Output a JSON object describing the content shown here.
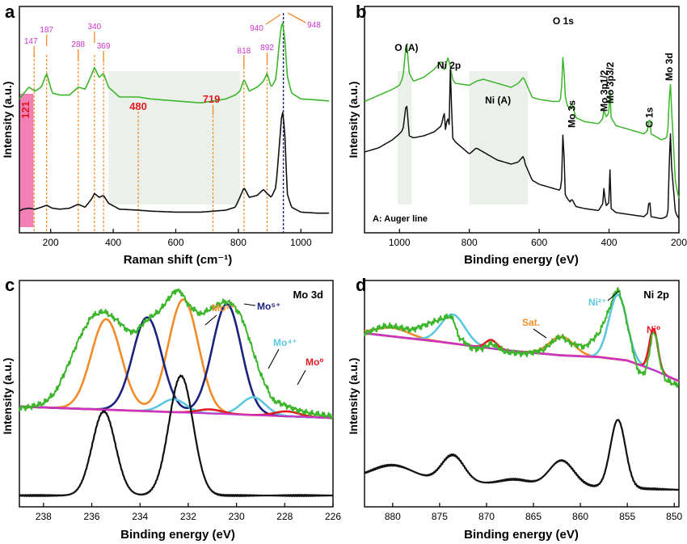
{
  "colors": {
    "green": "#3bb52a",
    "black": "#111111",
    "orange": "#f28c28",
    "navy": "#1a237e",
    "cyan": "#5bc8e0",
    "red": "#e21b23",
    "magenta": "#cc33cc",
    "pink": "#f06aa8",
    "shade": "#e6ece6"
  },
  "chart_data": [
    {
      "panel": "a",
      "type": "line",
      "xlabel": "Raman shift (cm⁻¹)",
      "ylabel": "Intensity (a.u.)",
      "xlim": [
        100,
        1100
      ],
      "xticks": [
        200,
        400,
        600,
        800,
        1000
      ],
      "shaded_regions": [
        [
          100,
          145
        ],
        [
          385,
          805
        ]
      ],
      "peak_markers": [
        {
          "x": 147,
          "label": "147"
        },
        {
          "x": 187,
          "label": "187"
        },
        {
          "x": 288,
          "label": "288"
        },
        {
          "x": 340,
          "label": "340"
        },
        {
          "x": 369,
          "label": "369"
        },
        {
          "x": 818,
          "label": "818"
        },
        {
          "x": 892,
          "label": "892"
        },
        {
          "x": 940,
          "label": "940"
        },
        {
          "x": 948,
          "label": "948"
        }
      ],
      "bold_labels": [
        {
          "x": 121,
          "label": "121"
        },
        {
          "x": 480,
          "label": "480"
        },
        {
          "x": 719,
          "label": "719"
        }
      ],
      "series": [
        {
          "name": "top",
          "color": "green",
          "x": [
            100,
            110,
            130,
            150,
            170,
            187,
            205,
            230,
            260,
            288,
            310,
            330,
            340,
            355,
            369,
            385,
            420,
            480,
            520,
            600,
            680,
            719,
            760,
            790,
            805,
            818,
            835,
            860,
            880,
            892,
            905,
            920,
            932,
            940,
            948,
            956,
            970,
            1000,
            1050,
            1090
          ],
          "y": [
            0.6,
            0.62,
            0.66,
            0.64,
            0.66,
            0.73,
            0.63,
            0.62,
            0.62,
            0.66,
            0.65,
            0.72,
            0.76,
            0.71,
            0.73,
            0.66,
            0.61,
            0.61,
            0.6,
            0.59,
            0.58,
            0.59,
            0.6,
            0.62,
            0.64,
            0.7,
            0.64,
            0.66,
            0.69,
            0.73,
            0.66,
            0.7,
            0.9,
            1.0,
            0.92,
            0.72,
            0.63,
            0.6,
            0.595,
            0.59
          ]
        },
        {
          "name": "bottom",
          "color": "black",
          "x": [
            100,
            110,
            130,
            150,
            170,
            187,
            205,
            230,
            260,
            288,
            310,
            330,
            340,
            355,
            369,
            385,
            420,
            480,
            520,
            600,
            680,
            760,
            790,
            805,
            818,
            835,
            860,
            880,
            892,
            905,
            920,
            932,
            940,
            948,
            956,
            970,
            1000,
            1050,
            1090
          ],
          "y": [
            0.03,
            0.04,
            0.045,
            0.04,
            0.05,
            0.06,
            0.045,
            0.04,
            0.045,
            0.065,
            0.05,
            0.09,
            0.12,
            0.1,
            0.11,
            0.07,
            0.04,
            0.035,
            0.03,
            0.025,
            0.025,
            0.035,
            0.05,
            0.1,
            0.15,
            0.1,
            0.11,
            0.14,
            0.12,
            0.1,
            0.15,
            0.38,
            0.55,
            0.45,
            0.12,
            0.05,
            0.025,
            0.02,
            0.02
          ]
        }
      ]
    },
    {
      "panel": "b",
      "type": "line",
      "xlabel": "Binding energy (eV)",
      "ylabel": "Intensity (a.u.)",
      "xlim": [
        1100,
        200
      ],
      "xticks": [
        1000,
        800,
        600,
        400,
        200
      ],
      "shaded_regions": [
        [
          1005,
          965
        ],
        [
          800,
          632
        ]
      ],
      "annotations": [
        {
          "x": 980,
          "label": "O (A)"
        },
        {
          "x": 858,
          "label": "Ni 2p"
        },
        {
          "x": 720,
          "label": "Ni (A)"
        },
        {
          "x": 531,
          "label": "O 1s"
        },
        {
          "x": 507,
          "label": "Mo 3s"
        },
        {
          "x": 414,
          "label": "Mo 3p1/2"
        },
        {
          "x": 397,
          "label": "Mo 3p3/2"
        },
        {
          "x": 285,
          "label": "C 1s"
        },
        {
          "x": 228,
          "label": "Mo 3d"
        }
      ],
      "legend_note": "A: Auger line",
      "series": [
        {
          "name": "top",
          "color": "green",
          "x": [
            1100,
            1060,
            1020,
            1000,
            990,
            980,
            972,
            960,
            930,
            900,
            880,
            870,
            862,
            855,
            848,
            840,
            800,
            780,
            760,
            740,
            720,
            700,
            680,
            660,
            645,
            640,
            620,
            600,
            560,
            540,
            533,
            531,
            528,
            520,
            510,
            507,
            495,
            470,
            430,
            416,
            414,
            410,
            405,
            400,
            397,
            394,
            380,
            340,
            300,
            288,
            285,
            280,
            250,
            235,
            229,
            226,
            222,
            210,
            200
          ],
          "y": [
            0.6,
            0.63,
            0.66,
            0.68,
            0.72,
            0.9,
            0.74,
            0.7,
            0.72,
            0.76,
            0.8,
            0.75,
            0.82,
            0.78,
            0.71,
            0.69,
            0.68,
            0.7,
            0.71,
            0.7,
            0.69,
            0.68,
            0.67,
            0.69,
            0.72,
            0.7,
            0.62,
            0.61,
            0.6,
            0.6,
            0.72,
            1.0,
            0.65,
            0.58,
            0.56,
            0.6,
            0.52,
            0.5,
            0.49,
            0.52,
            0.58,
            0.52,
            0.53,
            0.55,
            0.66,
            0.52,
            0.48,
            0.46,
            0.44,
            0.46,
            0.55,
            0.44,
            0.41,
            0.42,
            0.5,
            0.75,
            0.6,
            0.2,
            0.12
          ]
        },
        {
          "name": "bottom",
          "color": "black",
          "x": [
            1100,
            1060,
            1020,
            1000,
            990,
            980,
            972,
            960,
            930,
            900,
            880,
            872,
            868,
            862,
            858,
            855,
            848,
            840,
            800,
            780,
            760,
            740,
            720,
            700,
            680,
            660,
            645,
            640,
            620,
            600,
            560,
            540,
            533,
            531,
            528,
            520,
            510,
            507,
            495,
            470,
            430,
            416,
            414,
            410,
            405,
            400,
            397,
            394,
            380,
            340,
            300,
            288,
            285,
            280,
            250,
            235,
            229,
            226,
            222,
            210,
            200
          ],
          "y": [
            0.35,
            0.37,
            0.41,
            0.44,
            0.46,
            0.6,
            0.43,
            0.42,
            0.43,
            0.45,
            0.48,
            0.55,
            0.46,
            0.53,
            0.45,
            0.8,
            0.42,
            0.4,
            0.34,
            0.37,
            0.35,
            0.33,
            0.31,
            0.3,
            0.29,
            0.3,
            0.33,
            0.29,
            0.21,
            0.19,
            0.17,
            0.16,
            0.25,
            0.78,
            0.15,
            0.12,
            0.1,
            0.12,
            0.08,
            0.07,
            0.06,
            0.1,
            0.2,
            0.08,
            0.09,
            0.1,
            0.28,
            0.07,
            0.05,
            0.04,
            0.03,
            0.05,
            0.14,
            0.03,
            0.02,
            0.03,
            0.08,
            0.55,
            0.3,
            0.05,
            0.02
          ]
        }
      ]
    },
    {
      "panel": "c",
      "type": "line",
      "title": "Mo 3d",
      "xlabel": "Binding energy (eV)",
      "ylabel": "Intensity (a.u.)",
      "xlim": [
        239,
        226
      ],
      "xticks": [
        238,
        236,
        234,
        232,
        230,
        228,
        226
      ],
      "raw_curve": {
        "color": "green",
        "x": [
          239,
          238.5,
          238,
          237.5,
          237,
          236.5,
          236,
          235.5,
          235,
          234.5,
          234.2,
          233.9,
          233.5,
          233.2,
          233,
          232.7,
          232.5,
          232.3,
          232,
          231.5,
          231,
          230.5,
          230.2,
          229.8,
          229.5,
          229,
          228.5,
          228,
          227.5,
          227,
          226.5,
          226
        ],
        "y": [
          0.16,
          0.17,
          0.19,
          0.26,
          0.42,
          0.6,
          0.73,
          0.76,
          0.71,
          0.64,
          0.63,
          0.68,
          0.73,
          0.76,
          0.8,
          0.86,
          0.89,
          0.88,
          0.8,
          0.74,
          0.78,
          0.82,
          0.81,
          0.73,
          0.6,
          0.37,
          0.21,
          0.18,
          0.15,
          0.13,
          0.12,
          0.11
        ]
      },
      "baseline": {
        "color": "magenta",
        "x": [
          239,
          226
        ],
        "y": [
          0.17,
          0.1
        ]
      },
      "components": [
        {
          "label": "Mo⁶⁺",
          "color": "orange",
          "peaks": [
            {
              "center": 232.2,
              "height": 0.7,
              "width": 0.62
            },
            {
              "center": 235.4,
              "height": 0.56,
              "width": 0.62
            }
          ]
        },
        {
          "label": "Mo⁵⁺",
          "color": "navy",
          "peaks": [
            {
              "center": 230.4,
              "height": 0.68,
              "width": 0.6
            },
            {
              "center": 233.7,
              "height": 0.58,
              "width": 0.6
            }
          ]
        },
        {
          "label": "Mo⁴⁺",
          "color": "cyan",
          "peaks": [
            {
              "center": 229.3,
              "height": 0.11,
              "width": 0.5
            },
            {
              "center": 232.6,
              "height": 0.08,
              "width": 0.5
            }
          ]
        },
        {
          "label": "Mo⁰",
          "color": "red",
          "peaks": [
            {
              "center": 227.9,
              "height": 0.03,
              "width": 0.5
            },
            {
              "center": 231.1,
              "height": 0.025,
              "width": 0.5
            }
          ]
        }
      ],
      "series": [
        {
          "name": "bottom",
          "color": "black",
          "baseline": -0.38,
          "peaks": [
            {
              "center": 235.5,
              "height": 0.52,
              "width": 0.48
            },
            {
              "center": 232.3,
              "height": 0.74,
              "width": 0.5
            }
          ]
        }
      ]
    },
    {
      "panel": "d",
      "type": "line",
      "title": "Ni 2p",
      "xlabel": "Binding energy (eV)",
      "ylabel": "Intensity (a.u.)",
      "xlim": [
        883,
        849.5
      ],
      "xticks": [
        880,
        875,
        870,
        865,
        860,
        855,
        850
      ],
      "raw_curve": {
        "color": "green",
        "x": [
          883,
          881,
          880,
          878,
          876,
          874,
          873.5,
          873,
          871.5,
          870.5,
          869.5,
          868,
          866,
          864,
          862.5,
          862,
          861,
          859.5,
          858,
          857,
          856.3,
          856,
          855.5,
          854.8,
          854,
          853.5,
          853,
          852.3,
          852,
          851.5,
          851,
          850,
          849.5
        ],
        "y": [
          0.72,
          0.76,
          0.76,
          0.74,
          0.78,
          0.82,
          0.8,
          0.7,
          0.63,
          0.63,
          0.66,
          0.61,
          0.6,
          0.62,
          0.69,
          0.7,
          0.66,
          0.64,
          0.72,
          0.85,
          0.96,
          0.98,
          0.9,
          0.72,
          0.52,
          0.48,
          0.5,
          0.72,
          0.72,
          0.55,
          0.45,
          0.42,
          0.42
        ]
      },
      "baseline": {
        "color": "magenta",
        "x": [
          883,
          875,
          868,
          862,
          858,
          855,
          852,
          850,
          849.5
        ],
        "y": [
          0.72,
          0.67,
          0.62,
          0.59,
          0.58,
          0.56,
          0.5,
          0.45,
          0.44
        ]
      },
      "components": [
        {
          "label": "Sat.",
          "color": "orange",
          "peaks": [
            {
              "center": 862,
              "height": 0.11,
              "width": 1.3
            },
            {
              "center": 880,
              "height": 0.05,
              "width": 1.8
            }
          ]
        },
        {
          "label": "Ni²⁺",
          "color": "cyan",
          "peaks": [
            {
              "center": 856,
              "height": 0.38,
              "width": 0.95
            },
            {
              "center": 873.6,
              "height": 0.17,
              "width": 1.3
            }
          ]
        },
        {
          "label": "Ni⁰",
          "color": "red",
          "peaks": [
            {
              "center": 852.2,
              "height": 0.24,
              "width": 0.45
            },
            {
              "center": 869.5,
              "height": 0.05,
              "width": 0.6
            }
          ]
        }
      ],
      "series": [
        {
          "name": "bottom",
          "color": "black",
          "baseline": -0.2,
          "peaks": [
            {
              "center": 880,
              "height": 0.09,
              "width": 2.3
            },
            {
              "center": 873.6,
              "height": 0.16,
              "width": 1.2
            },
            {
              "center": 867,
              "height": 0.03,
              "width": 1.5
            },
            {
              "center": 862,
              "height": 0.15,
              "width": 1.3
            },
            {
              "center": 856,
              "height": 0.4,
              "width": 0.8
            }
          ]
        }
      ]
    }
  ],
  "panels": {
    "a": {
      "letter": "a"
    },
    "b": {
      "letter": "b"
    },
    "c": {
      "letter": "c"
    },
    "d": {
      "letter": "d"
    }
  }
}
